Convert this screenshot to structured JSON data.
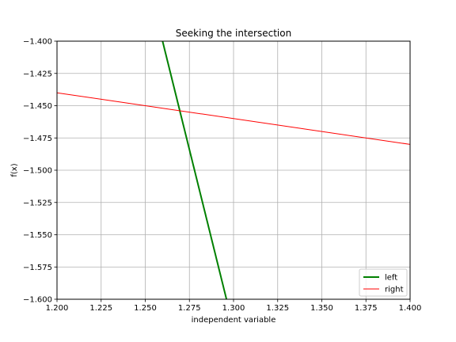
{
  "chart_data": {
    "type": "line",
    "title": "Seeking the intersection",
    "xlabel": "independent variable",
    "ylabel": "f(x)",
    "xlim": [
      1.2,
      1.4
    ],
    "ylim": [
      -1.6,
      -1.4
    ],
    "grid": true,
    "legend_location": "lower right",
    "x_ticks": [
      "1.200",
      "1.225",
      "1.250",
      "1.275",
      "1.300",
      "1.325",
      "1.350",
      "1.375",
      "1.400"
    ],
    "y_ticks": [
      "-1.400",
      "-1.425",
      "-1.450",
      "-1.475",
      "-1.500",
      "-1.525",
      "-1.550",
      "-1.575",
      "-1.600"
    ],
    "series": [
      {
        "name": "left",
        "color": "#008000",
        "line_width": "thick",
        "x": [
          1.2598,
          1.296
        ],
        "y": [
          -1.4,
          -1.6
        ]
      },
      {
        "name": "right",
        "color": "#ff0000",
        "line_width": "thin",
        "x": [
          1.2,
          1.4
        ],
        "y": [
          -1.44,
          -1.48
        ]
      }
    ]
  }
}
